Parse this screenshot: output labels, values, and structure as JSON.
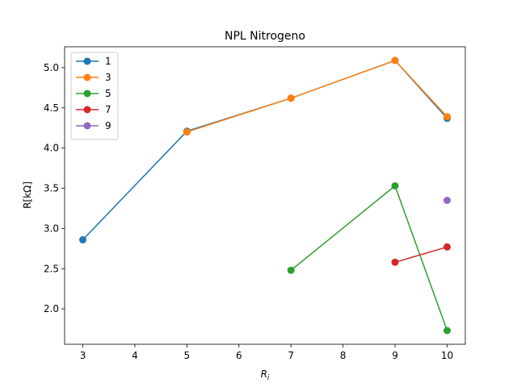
{
  "chart_data": {
    "type": "line",
    "title": "NPL Nitrogeno",
    "xlabel": "R_i",
    "ylabel": "R[kΩ]",
    "xlim": [
      2.65,
      10.35
    ],
    "ylim": [
      1.56,
      5.26
    ],
    "xticks": [
      3,
      4,
      5,
      6,
      7,
      8,
      9,
      10
    ],
    "yticks": [
      2.0,
      2.5,
      3.0,
      3.5,
      4.0,
      4.5,
      5.0
    ],
    "grid": false,
    "legend_position": "top-left",
    "series": [
      {
        "name": "1",
        "color": "#1f77b4",
        "x": [
          3,
          5,
          7,
          9,
          10
        ],
        "y": [
          2.86,
          4.21,
          4.62,
          5.09,
          4.37
        ]
      },
      {
        "name": "3",
        "color": "#ff7f0e",
        "x": [
          5,
          7,
          9,
          10
        ],
        "y": [
          4.2,
          4.62,
          5.09,
          4.39
        ]
      },
      {
        "name": "5",
        "color": "#2ca02c",
        "x": [
          7,
          9,
          10
        ],
        "y": [
          2.48,
          3.53,
          1.73
        ]
      },
      {
        "name": "7",
        "color": "#d62728",
        "x": [
          9,
          10
        ],
        "y": [
          2.58,
          2.77
        ]
      },
      {
        "name": "9",
        "color": "#9467bd",
        "x": [
          10
        ],
        "y": [
          3.35
        ]
      }
    ]
  }
}
